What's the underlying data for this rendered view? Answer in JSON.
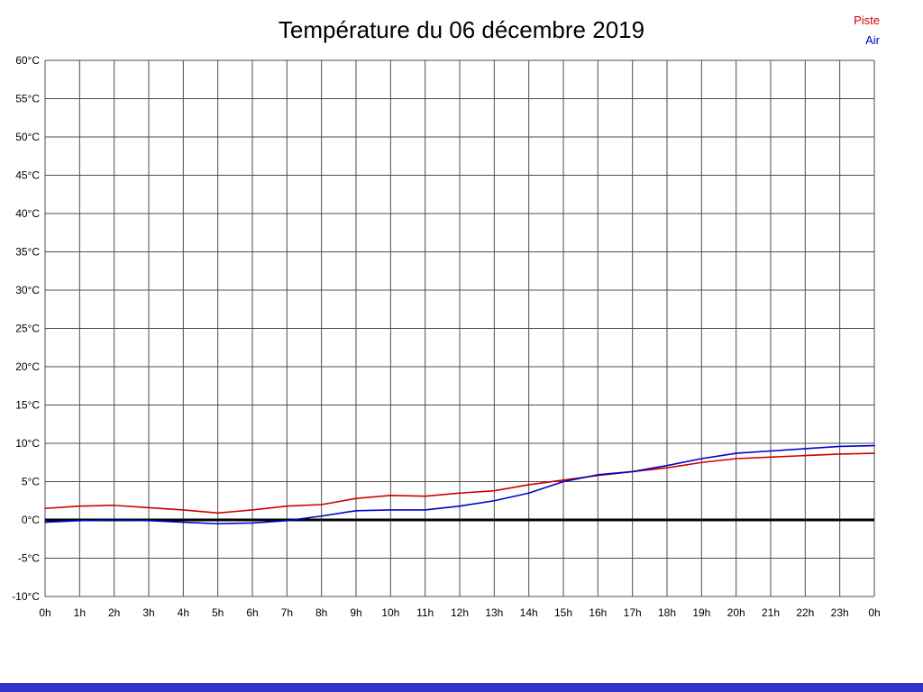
{
  "title": "Température du 06 décembre 2019",
  "bottom_bar_color": "#3333cc",
  "chart_data": {
    "type": "line",
    "title": "Température du 06 décembre 2019",
    "xlabel": "",
    "ylabel": "",
    "ylim": [
      -10,
      60
    ],
    "grid": true,
    "grid_color": "#4d4d4d",
    "zero_line": {
      "value": 0,
      "color": "#000000",
      "width": 3
    },
    "legend_position": "top-right",
    "x_tick_labels": [
      "0h",
      "1h",
      "2h",
      "3h",
      "4h",
      "5h",
      "6h",
      "7h",
      "8h",
      "9h",
      "10h",
      "11h",
      "12h",
      "13h",
      "14h",
      "15h",
      "16h",
      "17h",
      "18h",
      "19h",
      "20h",
      "21h",
      "22h",
      "23h",
      "0h"
    ],
    "y_tick_labels": [
      "60°C",
      "55°C",
      "50°C",
      "45°C",
      "40°C",
      "35°C",
      "30°C",
      "25°C",
      "20°C",
      "15°C",
      "10°C",
      "5°C",
      "0°C",
      "-5°C",
      "-10°C"
    ],
    "y_tick_values": [
      60,
      55,
      50,
      45,
      40,
      35,
      30,
      25,
      20,
      15,
      10,
      5,
      0,
      -5,
      -10
    ],
    "series": [
      {
        "name": "Piste",
        "color": "#cc0000",
        "values": [
          1.5,
          1.8,
          1.9,
          1.6,
          1.3,
          0.9,
          1.3,
          1.8,
          2.0,
          2.8,
          3.2,
          3.1,
          3.5,
          3.8,
          4.6,
          5.2,
          5.8,
          6.3,
          6.8,
          7.5,
          8.0,
          8.2,
          8.4,
          8.6,
          8.7
        ]
      },
      {
        "name": "Air",
        "color": "#0000cc",
        "values": [
          -0.3,
          -0.1,
          0.0,
          -0.1,
          -0.3,
          -0.5,
          -0.4,
          -0.1,
          0.5,
          1.2,
          1.3,
          1.3,
          1.8,
          2.5,
          3.5,
          5.0,
          5.9,
          6.3,
          7.1,
          8.0,
          8.7,
          9.0,
          9.3,
          9.6,
          9.7
        ]
      }
    ]
  }
}
